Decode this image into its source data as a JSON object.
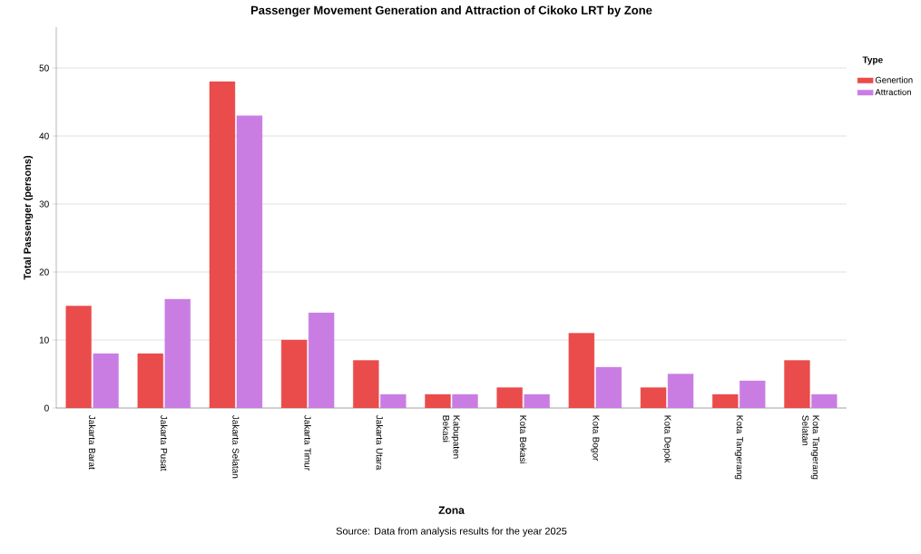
{
  "chart_data": {
    "type": "bar",
    "title": "Passenger Movement Generation and Attraction of Cikoko LRT by Zone",
    "categories": [
      "Jakarta Barat",
      "Jakarta Pusat",
      "Jakarta Selatan",
      "Jakarta Timur",
      "Jakarta Utara",
      "Kabupaten Bekasi",
      "Kota Bekasi",
      "Kota Bogor",
      "Kota Depok",
      "Kota Tangerang",
      "Kota Tangerang Selatan"
    ],
    "series": [
      {
        "name": "Genertion",
        "color": "#ea4b4b",
        "values": [
          15,
          8,
          48,
          10,
          7,
          2,
          3,
          11,
          3,
          2,
          7
        ]
      },
      {
        "name": "Attraction",
        "color": "#c97de3",
        "values": [
          8,
          16,
          43,
          14,
          2,
          2,
          2,
          6,
          5,
          4,
          2
        ]
      }
    ],
    "xlabel": "Zona",
    "ylabel": "Total Passenger (persons)",
    "legend_title": "Type",
    "ylim": [
      0,
      56
    ],
    "yticks": [
      0,
      10,
      20,
      30,
      40,
      50
    ],
    "grid": "y",
    "legend": "top right",
    "annotations": [
      "Source: Data from analysis results for the year 2025"
    ]
  }
}
